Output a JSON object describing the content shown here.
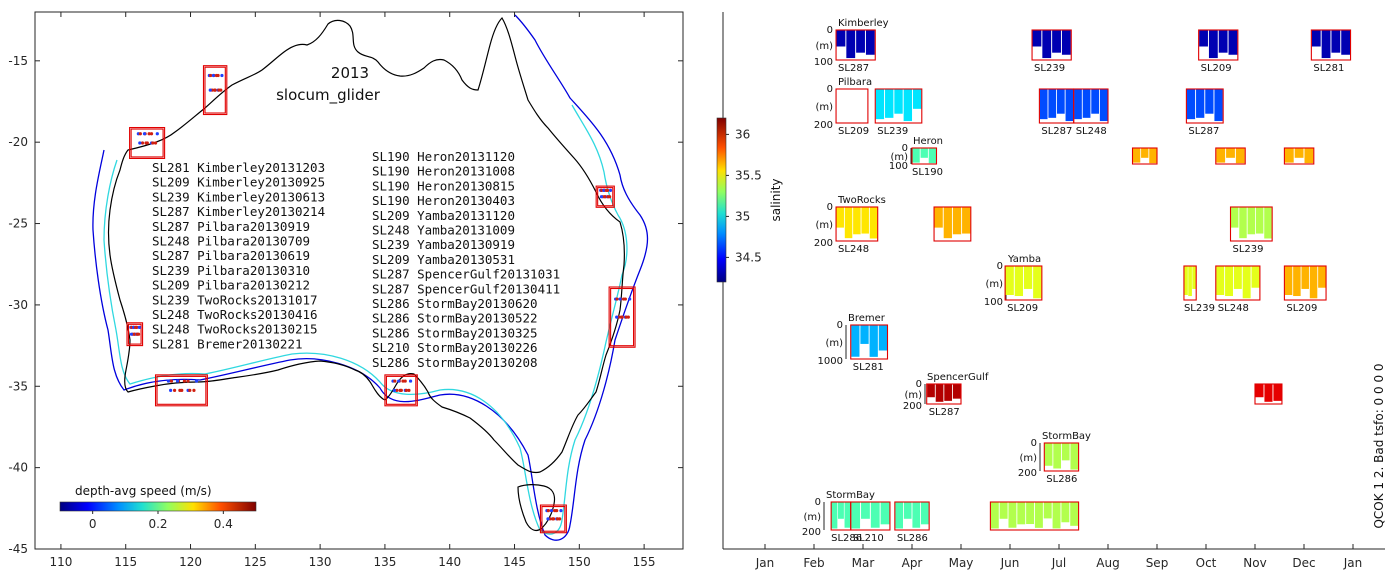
{
  "chart_data": [
    {
      "type": "map",
      "title": "2013",
      "subtitle": "slocum_glider",
      "xlim": [
        108,
        158
      ],
      "ylim": [
        -45,
        -12
      ],
      "xticks": [
        110,
        115,
        120,
        125,
        130,
        135,
        140,
        145,
        150,
        155
      ],
      "yticks": [
        -15,
        -20,
        -25,
        -30,
        -35,
        -40,
        -45
      ],
      "colorbar": {
        "label": "depth-avg speed (m/s)",
        "range": [
          -0.1,
          0.5
        ],
        "ticks": [
          "0",
          "0.2",
          "0.4"
        ],
        "tick_values": [
          0,
          0.2,
          0.4
        ]
      },
      "deployments_col1": [
        "SL281 Kimberley20131203",
        "SL209 Kimberley20130925",
        "SL239 Kimberley20130613",
        "SL287 Kimberley20130214",
        "SL287 Pilbara20130919",
        "SL248 Pilbara20130709",
        "SL287 Pilbara20130619",
        "SL239 Pilbara20130310",
        "SL209 Pilbara20130212",
        "SL239 TwoRocks20131017",
        "SL248 TwoRocks20130416",
        "SL248 TwoRocks20130215",
        "SL281 Bremer20130221"
      ],
      "deployments_col2": [
        "SL190 Heron20131120",
        "SL190 Heron20131008",
        "SL190 Heron20130815",
        "SL190 Heron20130403",
        "SL209 Yamba20131120",
        "SL248 Yamba20131009",
        "SL239 Yamba20130919",
        "SL209 Yamba20130531",
        "SL287 SpencerGulf20131031",
        "SL287 SpencerGulf20130411",
        "SL286 StormBay20130620",
        "SL286 StormBay20130522",
        "SL286 StormBay20130325",
        "SL210 StormBay20130226",
        "SL286 StormBay20130208"
      ],
      "regions": [
        {
          "name": "Kimberley",
          "lon": [
            121,
            122.8
          ],
          "lat": [
            -18.3,
            -15.3
          ]
        },
        {
          "name": "Pilbara",
          "lon": [
            115.3,
            118
          ],
          "lat": [
            -21,
            -19.1
          ]
        },
        {
          "name": "Heron",
          "lon": [
            151.3,
            152.7
          ],
          "lat": [
            -24,
            -22.7
          ]
        },
        {
          "name": "TwoRocks",
          "lon": [
            115.1,
            116.3
          ],
          "lat": [
            -32.5,
            -31.1
          ]
        },
        {
          "name": "Bremer",
          "lon": [
            117.3,
            121.3
          ],
          "lat": [
            -36.2,
            -34.3
          ]
        },
        {
          "name": "SpencerGulf",
          "lon": [
            135,
            137.5
          ],
          "lat": [
            -36.2,
            -34.3
          ]
        },
        {
          "name": "Yamba",
          "lon": [
            152.3,
            154.3
          ],
          "lat": [
            -32.6,
            -28.9
          ]
        },
        {
          "name": "StormBay",
          "lon": [
            147,
            149
          ],
          "lat": [
            -44,
            -42.3
          ]
        }
      ]
    },
    {
      "type": "timeline",
      "months": [
        "Jan",
        "Feb",
        "Mar",
        "Apr",
        "May",
        "Jun",
        "Jul",
        "Aug",
        "Sep",
        "Oct",
        "Nov",
        "Dec",
        "Jan"
      ],
      "colorbar": {
        "label": "salinity",
        "range": [
          34.2,
          36.2
        ],
        "ticks": [
          "34.5",
          "35",
          "35.5",
          "36"
        ],
        "tick_values": [
          34.5,
          35,
          35.5,
          36
        ]
      },
      "depth_unit": "(m)",
      "side_text": "QCOK 1  2. Bad tsfo: 0  0  0  0",
      "rows": [
        {
          "site": "Kimberley",
          "depth_top": "0",
          "depth_bottom": "100",
          "segments": [
            {
              "glider": "SL287",
              "start": 1.45,
              "end": 2.25,
              "salinity": 34.3
            },
            {
              "glider": "SL239",
              "start": 5.45,
              "end": 6.25,
              "salinity": 34.3
            },
            {
              "glider": "SL209",
              "start": 8.85,
              "end": 9.65,
              "salinity": 34.3
            },
            {
              "glider": "SL281",
              "start": 11.15,
              "end": 11.95,
              "salinity": 34.3
            }
          ]
        },
        {
          "site": "Pilbara",
          "depth_top": "0",
          "depth_bottom": "200",
          "segments": [
            {
              "glider": "SL209",
              "start": 1.45,
              "end": 2.1,
              "salinity": null
            },
            {
              "glider": "SL239",
              "start": 2.25,
              "end": 3.2,
              "salinity": 34.9
            },
            {
              "glider": "SL287",
              "start": 5.6,
              "end": 6.3,
              "salinity": 34.6
            },
            {
              "glider": "SL248",
              "start": 6.3,
              "end": 7.0,
              "salinity": 34.6
            },
            {
              "glider": "SL287",
              "start": 8.6,
              "end": 9.35,
              "salinity": 34.6
            }
          ]
        },
        {
          "site": "Heron",
          "depth_top": "0",
          "depth_bottom": "100",
          "segments": [
            {
              "glider": "SL190",
              "start": 3.0,
              "end": 3.5,
              "salinity": 35.1
            },
            {
              "glider": "",
              "start": 7.5,
              "end": 8.0,
              "salinity": 35.6
            },
            {
              "glider": "",
              "start": 9.2,
              "end": 9.8,
              "salinity": 35.6
            },
            {
              "glider": "",
              "start": 10.6,
              "end": 11.2,
              "salinity": 35.6
            }
          ]
        },
        {
          "site": "TwoRocks",
          "depth_top": "0",
          "depth_bottom": "200",
          "segments": [
            {
              "glider": "SL248",
              "start": 1.45,
              "end": 2.3,
              "salinity": 35.5
            },
            {
              "glider": "",
              "start": 3.45,
              "end": 4.2,
              "salinity": 35.6
            },
            {
              "glider": "SL239",
              "start": 9.5,
              "end": 10.35,
              "salinity": 35.3
            }
          ]
        },
        {
          "site": "Yamba",
          "depth_top": "0",
          "depth_bottom": "100",
          "segments": [
            {
              "glider": "SL209",
              "start": 4.9,
              "end": 5.65,
              "salinity": 35.4
            },
            {
              "glider": "SL239",
              "start": 8.55,
              "end": 8.8,
              "salinity": 35.4
            },
            {
              "glider": "SL248",
              "start": 9.2,
              "end": 10.1,
              "salinity": 35.4
            },
            {
              "glider": "SL209",
              "start": 10.6,
              "end": 11.45,
              "salinity": 35.6
            }
          ]
        },
        {
          "site": "Bremer",
          "depth_top": "0",
          "depth_bottom": "1000",
          "segments": [
            {
              "glider": "SL281",
              "start": 1.75,
              "end": 2.5,
              "salinity": 34.8
            }
          ]
        },
        {
          "site": "SpencerGulf",
          "depth_top": "0",
          "depth_bottom": "200",
          "segments": [
            {
              "glider": "SL287",
              "start": 3.3,
              "end": 4.0,
              "salinity": 36.1
            },
            {
              "glider": "",
              "start": 10.0,
              "end": 10.55,
              "salinity": 36.0
            }
          ]
        },
        {
          "site": "StormBay",
          "depth_top": "0",
          "depth_bottom": "200",
          "segments": [
            {
              "glider": "SL286",
              "start": 5.7,
              "end": 6.4,
              "salinity": 35.3
            }
          ]
        },
        {
          "site": "StormBay",
          "depth_top": "0",
          "depth_bottom": "200",
          "segments": [
            {
              "glider": "SL286",
              "start": 1.35,
              "end": 1.75,
              "salinity": 35.1
            },
            {
              "glider": "SL210",
              "start": 1.75,
              "end": 2.55,
              "salinity": 35.1
            },
            {
              "glider": "SL286",
              "start": 2.65,
              "end": 3.35,
              "salinity": 35.1
            },
            {
              "glider": "",
              "start": 4.6,
              "end": 6.4,
              "salinity": 35.3
            }
          ]
        }
      ]
    }
  ]
}
